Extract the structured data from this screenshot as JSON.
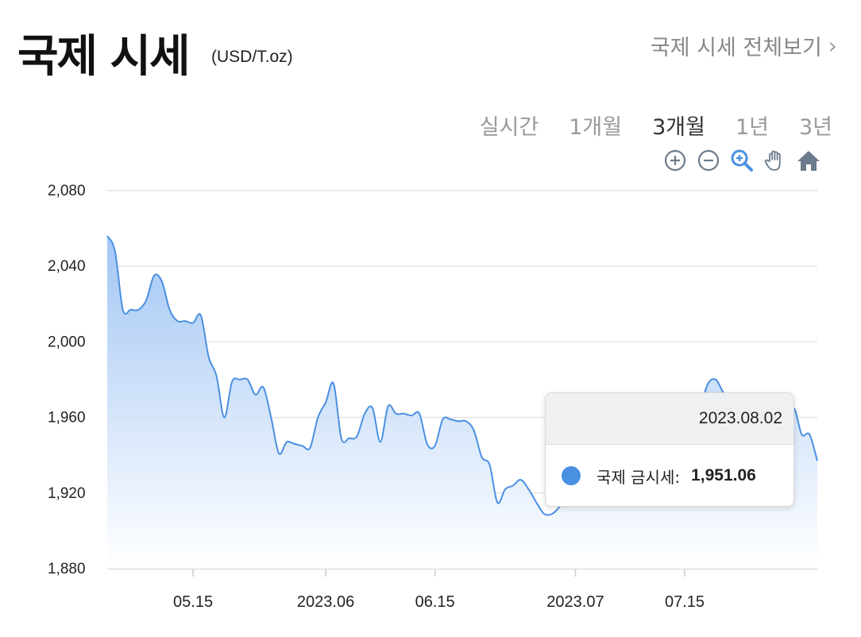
{
  "header": {
    "title": "국제 시세",
    "unit": "(USD/T.oz)",
    "view_all": "국제 시세 전체보기"
  },
  "ranges": [
    {
      "label": "실시간",
      "active": false
    },
    {
      "label": "1개월",
      "active": false
    },
    {
      "label": "3개월",
      "active": true
    },
    {
      "label": "1년",
      "active": false
    },
    {
      "label": "3년",
      "active": false
    }
  ],
  "toolbar": {
    "icons": [
      "zoom-in-icon",
      "zoom-out-icon",
      "magnifier-icon",
      "pan-hand-icon",
      "home-icon"
    ],
    "accent": "#4a90e2",
    "icon_color": "#6b7a8c"
  },
  "tooltip": {
    "date": "2023.08.02",
    "series_label": "국제 금시세:",
    "value": "1,951.06"
  },
  "chart_data": {
    "type": "area",
    "title": "",
    "xlabel": "",
    "ylabel": "",
    "ylim": [
      1880,
      2080
    ],
    "yticks": [
      "2,080",
      "2,040",
      "2,000",
      "1,960",
      "1,920",
      "1,880"
    ],
    "xticks": [
      {
        "label": "05.15",
        "date": "2023-05-15"
      },
      {
        "label": "2023.06",
        "date": "2023-06-01"
      },
      {
        "label": "06.15",
        "date": "2023-06-15"
      },
      {
        "label": "2023.07",
        "date": "2023-07-03"
      },
      {
        "label": "07.15",
        "date": "2023-07-17"
      }
    ],
    "xlim": [
      "2023-05-04",
      "2023-08-03"
    ],
    "grid": true,
    "line_color": "#4a90e2",
    "fill_color": "#a9cbf5",
    "series": [
      {
        "x": [
          "2023-05-04",
          "2023-05-05",
          "2023-05-06",
          "2023-05-07",
          "2023-05-08",
          "2023-05-09",
          "2023-05-10",
          "2023-05-11",
          "2023-05-12",
          "2023-05-13",
          "2023-05-14",
          "2023-05-15",
          "2023-05-16",
          "2023-05-17",
          "2023-05-18",
          "2023-05-19",
          "2023-05-20",
          "2023-05-21",
          "2023-05-22",
          "2023-05-23",
          "2023-05-24",
          "2023-05-25",
          "2023-05-26",
          "2023-05-27",
          "2023-05-28",
          "2023-05-29",
          "2023-05-30",
          "2023-05-31",
          "2023-06-01",
          "2023-06-02",
          "2023-06-03",
          "2023-06-04",
          "2023-06-05",
          "2023-06-06",
          "2023-06-07",
          "2023-06-08",
          "2023-06-09",
          "2023-06-10",
          "2023-06-11",
          "2023-06-12",
          "2023-06-13",
          "2023-06-14",
          "2023-06-15",
          "2023-06-16",
          "2023-06-17",
          "2023-06-18",
          "2023-06-19",
          "2023-06-20",
          "2023-06-21",
          "2023-06-22",
          "2023-06-23",
          "2023-06-24",
          "2023-06-25",
          "2023-06-26",
          "2023-06-27",
          "2023-06-28",
          "2023-06-29",
          "2023-06-30",
          "2023-07-01",
          "2023-07-02",
          "2023-07-03",
          "2023-07-04",
          "2023-07-05",
          "2023-07-06",
          "2023-07-07",
          "2023-07-08",
          "2023-07-09",
          "2023-07-10",
          "2023-07-11",
          "2023-07-12",
          "2023-07-13",
          "2023-07-14",
          "2023-07-15",
          "2023-07-16",
          "2023-07-17",
          "2023-07-18",
          "2023-07-19",
          "2023-07-20",
          "2023-07-21",
          "2023-07-22",
          "2023-07-23",
          "2023-07-24",
          "2023-07-25",
          "2023-07-26",
          "2023-07-27",
          "2023-07-28",
          "2023-07-29",
          "2023-07-30",
          "2023-07-31",
          "2023-08-01",
          "2023-08-02",
          "2023-08-03"
        ],
        "y": [
          2056,
          2048,
          2017,
          2017,
          2017,
          2022,
          2035,
          2032,
          2017,
          2011,
          2011,
          2010,
          2014,
          1992,
          1982,
          1960,
          1979,
          1980,
          1980,
          1972,
          1976,
          1960,
          1941,
          1947,
          1946,
          1945,
          1944,
          1960,
          1968,
          1978,
          1949,
          1949,
          1950,
          1962,
          1965,
          1947,
          1966,
          1962,
          1962,
          1961,
          1962,
          1946,
          1945,
          1959,
          1959,
          1958,
          1958,
          1953,
          1939,
          1935,
          1915,
          1922,
          1924,
          1927,
          1922,
          1915,
          1909,
          1909,
          1913,
          1920,
          1922,
          1923,
          1925,
          1924,
          1926,
          1928,
          1930,
          1932,
          1934,
          1936,
          1940,
          1945,
          1950,
          1955,
          1958,
          1962,
          1966,
          1978,
          1980,
          1973,
          1970,
          1970,
          1968,
          1962,
          1960,
          1959,
          1958,
          1957,
          1965,
          1951,
          1951,
          1937
        ]
      }
    ]
  }
}
